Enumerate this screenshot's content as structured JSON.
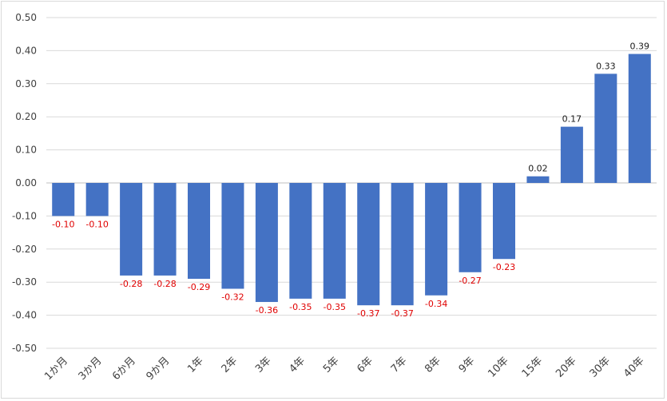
{
  "chart_data": {
    "type": "bar",
    "title": "",
    "xlabel": "",
    "ylabel": "",
    "categories": [
      "1か月",
      "3か月",
      "6か月",
      "9か月",
      "1年",
      "2年",
      "3年",
      "4年",
      "5年",
      "6年",
      "7年",
      "8年",
      "9年",
      "10年",
      "15年",
      "20年",
      "30年",
      "40年"
    ],
    "values": [
      -0.1,
      -0.1,
      -0.28,
      -0.28,
      -0.29,
      -0.32,
      -0.36,
      -0.35,
      -0.35,
      -0.37,
      -0.37,
      -0.34,
      -0.27,
      -0.23,
      0.02,
      0.17,
      0.33,
      0.39
    ],
    "data_labels": [
      "-0.10",
      "-0.10",
      "-0.28",
      "-0.28",
      "-0.29",
      "-0.32",
      "-0.36",
      "-0.35",
      "-0.35",
      "-0.37",
      "-0.37",
      "-0.34",
      "-0.27",
      "-0.23",
      "0.02",
      "0.17",
      "0.33",
      "0.39"
    ],
    "ylim": [
      -0.5,
      0.5
    ],
    "yticks": [
      0.5,
      0.4,
      0.3,
      0.2,
      0.1,
      0.0,
      -0.1,
      -0.2,
      -0.3,
      -0.4,
      -0.5
    ],
    "ytick_labels": [
      "0.50",
      "0.40",
      "0.30",
      "0.20",
      "0.10",
      "0.00",
      "-0.10",
      "-0.20",
      "-0.30",
      "-0.40",
      "-0.50"
    ],
    "grid": true,
    "legend": "none",
    "colors": {
      "bar": "#4472c4",
      "negative_label": "#e00000",
      "positive_label": "#1a1a1a",
      "grid": "#d9d9d9",
      "zero_line": "#bfbfbf"
    }
  }
}
